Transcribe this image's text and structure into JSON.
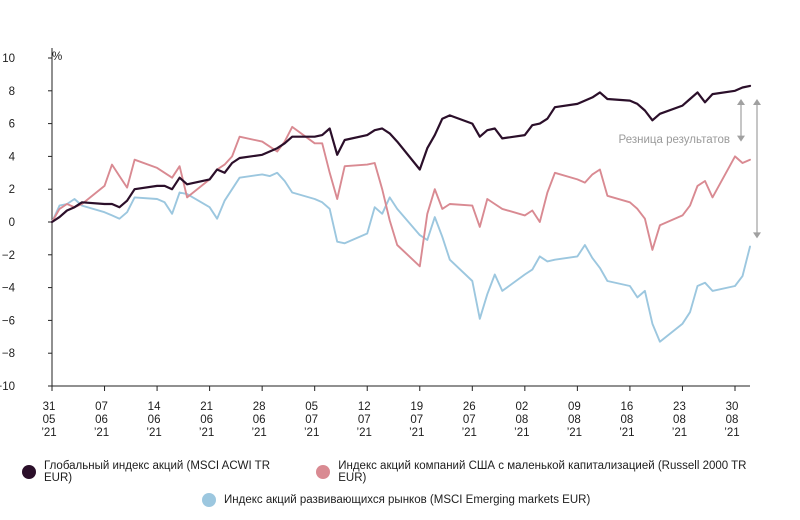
{
  "chart_data": {
    "type": "line",
    "y_unit": "%",
    "ylim": [
      -10,
      10
    ],
    "y_ticks": [
      "10",
      "8",
      "6",
      "4",
      "2",
      "0",
      "−2",
      "−4",
      "−6",
      "−8",
      "−10"
    ],
    "x_tick_labels": [
      [
        "31",
        "05",
        "’21"
      ],
      [
        "07",
        "06",
        "’21"
      ],
      [
        "14",
        "06",
        "’21"
      ],
      [
        "21",
        "06",
        "’21"
      ],
      [
        "28",
        "06",
        "’21"
      ],
      [
        "05",
        "07",
        "’21"
      ],
      [
        "12",
        "07",
        "’21"
      ],
      [
        "19",
        "07",
        "’21"
      ],
      [
        "26",
        "07",
        "’21"
      ],
      [
        "02",
        "08",
        "’21"
      ],
      [
        "09",
        "08",
        "’21"
      ],
      [
        "16",
        "08",
        "’21"
      ],
      [
        "23",
        "08",
        "’21"
      ],
      [
        "30",
        "08",
        "’21"
      ]
    ],
    "x_start": "2021-05-31",
    "x_end": "2021-09-01",
    "grid": false,
    "annotation": "Резница результатов",
    "series": [
      {
        "name": "Глобальный индекс акций (MSCI ACWI TR EUR)",
        "color": "#2b0f2a",
        "x": [
          "2021-05-31",
          "2021-06-01",
          "2021-06-02",
          "2021-06-03",
          "2021-06-04",
          "2021-06-07",
          "2021-06-08",
          "2021-06-09",
          "2021-06-10",
          "2021-06-11",
          "2021-06-14",
          "2021-06-15",
          "2021-06-16",
          "2021-06-17",
          "2021-06-18",
          "2021-06-21",
          "2021-06-22",
          "2021-06-23",
          "2021-06-24",
          "2021-06-25",
          "2021-06-28",
          "2021-06-29",
          "2021-06-30",
          "2021-07-01",
          "2021-07-02",
          "2021-07-05",
          "2021-07-06",
          "2021-07-07",
          "2021-07-08",
          "2021-07-09",
          "2021-07-12",
          "2021-07-13",
          "2021-07-14",
          "2021-07-15",
          "2021-07-16",
          "2021-07-19",
          "2021-07-20",
          "2021-07-21",
          "2021-07-22",
          "2021-07-23",
          "2021-07-26",
          "2021-07-27",
          "2021-07-28",
          "2021-07-29",
          "2021-07-30",
          "2021-08-02",
          "2021-08-03",
          "2021-08-04",
          "2021-08-05",
          "2021-08-06",
          "2021-08-09",
          "2021-08-10",
          "2021-08-11",
          "2021-08-12",
          "2021-08-13",
          "2021-08-16",
          "2021-08-17",
          "2021-08-18",
          "2021-08-19",
          "2021-08-20",
          "2021-08-23",
          "2021-08-24",
          "2021-08-25",
          "2021-08-26",
          "2021-08-27",
          "2021-08-30",
          "2021-08-31",
          "2021-09-01"
        ],
        "values": [
          0.0,
          0.3,
          0.7,
          0.9,
          1.2,
          1.1,
          1.1,
          0.9,
          1.3,
          2.0,
          2.2,
          2.2,
          2.0,
          2.7,
          2.3,
          2.6,
          3.2,
          3.0,
          3.6,
          3.9,
          4.1,
          4.3,
          4.5,
          4.8,
          5.2,
          5.2,
          5.3,
          5.7,
          4.1,
          5.0,
          5.3,
          5.6,
          5.7,
          5.4,
          4.9,
          3.2,
          4.5,
          5.3,
          6.3,
          6.5,
          6.0,
          5.2,
          5.6,
          5.7,
          5.1,
          5.3,
          5.9,
          6.0,
          6.3,
          7.0,
          7.2,
          7.4,
          7.6,
          7.9,
          7.5,
          7.4,
          7.2,
          6.8,
          6.2,
          6.6,
          7.1,
          7.5,
          7.9,
          7.3,
          7.8,
          8.0,
          8.2,
          8.3
        ]
      },
      {
        "name": "Индекс акций компаний США с маленькой капитализацией (Russell 2000 TR EUR)",
        "color": "#d98a92",
        "x": [
          "2021-05-31",
          "2021-06-01",
          "2021-06-02",
          "2021-06-03",
          "2021-06-04",
          "2021-06-07",
          "2021-06-08",
          "2021-06-09",
          "2021-06-10",
          "2021-06-11",
          "2021-06-14",
          "2021-06-15",
          "2021-06-16",
          "2021-06-17",
          "2021-06-18",
          "2021-06-21",
          "2021-06-22",
          "2021-06-23",
          "2021-06-24",
          "2021-06-25",
          "2021-06-28",
          "2021-06-29",
          "2021-06-30",
          "2021-07-01",
          "2021-07-02",
          "2021-07-05",
          "2021-07-06",
          "2021-07-07",
          "2021-07-08",
          "2021-07-09",
          "2021-07-12",
          "2021-07-13",
          "2021-07-14",
          "2021-07-15",
          "2021-07-16",
          "2021-07-19",
          "2021-07-20",
          "2021-07-21",
          "2021-07-22",
          "2021-07-23",
          "2021-07-26",
          "2021-07-27",
          "2021-07-28",
          "2021-07-29",
          "2021-07-30",
          "2021-08-02",
          "2021-08-03",
          "2021-08-04",
          "2021-08-05",
          "2021-08-06",
          "2021-08-09",
          "2021-08-10",
          "2021-08-11",
          "2021-08-12",
          "2021-08-13",
          "2021-08-16",
          "2021-08-17",
          "2021-08-18",
          "2021-08-19",
          "2021-08-20",
          "2021-08-23",
          "2021-08-24",
          "2021-08-25",
          "2021-08-26",
          "2021-08-27",
          "2021-08-30",
          "2021-08-31",
          "2021-09-01"
        ],
        "values": [
          0.0,
          0.8,
          1.1,
          0.9,
          1.1,
          2.2,
          3.5,
          2.8,
          2.1,
          3.8,
          3.3,
          3.0,
          2.7,
          3.4,
          1.5,
          2.6,
          3.2,
          3.5,
          4.0,
          5.2,
          4.9,
          4.6,
          4.3,
          4.9,
          5.8,
          4.8,
          4.8,
          3.0,
          1.4,
          3.4,
          3.5,
          3.6,
          2.0,
          0.1,
          -1.4,
          -2.7,
          0.5,
          2.0,
          0.8,
          1.1,
          1.0,
          -0.3,
          1.4,
          1.1,
          0.8,
          0.4,
          0.7,
          0.0,
          1.8,
          3.0,
          2.6,
          2.4,
          2.9,
          3.2,
          1.6,
          1.2,
          0.8,
          0.2,
          -1.7,
          -0.2,
          0.4,
          1.0,
          2.2,
          2.5,
          1.5,
          4.0,
          3.6,
          3.8
        ]
      },
      {
        "name": "Индекс акций развивающихся рынков (MSCI Emerging markets EUR)",
        "color": "#9cc7df",
        "x": [
          "2021-05-31",
          "2021-06-01",
          "2021-06-02",
          "2021-06-03",
          "2021-06-04",
          "2021-06-07",
          "2021-06-08",
          "2021-06-09",
          "2021-06-10",
          "2021-06-11",
          "2021-06-14",
          "2021-06-15",
          "2021-06-16",
          "2021-06-17",
          "2021-06-18",
          "2021-06-21",
          "2021-06-22",
          "2021-06-23",
          "2021-06-24",
          "2021-06-25",
          "2021-06-28",
          "2021-06-29",
          "2021-06-30",
          "2021-07-01",
          "2021-07-02",
          "2021-07-05",
          "2021-07-06",
          "2021-07-07",
          "2021-07-08",
          "2021-07-09",
          "2021-07-12",
          "2021-07-13",
          "2021-07-14",
          "2021-07-15",
          "2021-07-16",
          "2021-07-19",
          "2021-07-20",
          "2021-07-21",
          "2021-07-22",
          "2021-07-23",
          "2021-07-26",
          "2021-07-27",
          "2021-07-28",
          "2021-07-29",
          "2021-07-30",
          "2021-08-02",
          "2021-08-03",
          "2021-08-04",
          "2021-08-05",
          "2021-08-06",
          "2021-08-09",
          "2021-08-10",
          "2021-08-11",
          "2021-08-12",
          "2021-08-13",
          "2021-08-16",
          "2021-08-17",
          "2021-08-18",
          "2021-08-19",
          "2021-08-20",
          "2021-08-23",
          "2021-08-24",
          "2021-08-25",
          "2021-08-26",
          "2021-08-27",
          "2021-08-30",
          "2021-08-31",
          "2021-09-01"
        ],
        "values": [
          0.0,
          1.0,
          1.1,
          1.4,
          1.0,
          0.6,
          0.4,
          0.2,
          0.6,
          1.5,
          1.4,
          1.2,
          0.5,
          1.8,
          1.7,
          0.9,
          0.2,
          1.3,
          2.0,
          2.7,
          2.9,
          2.8,
          3.0,
          2.5,
          1.8,
          1.4,
          1.2,
          0.8,
          -1.2,
          -1.3,
          -0.7,
          0.9,
          0.5,
          1.5,
          0.8,
          -0.8,
          -1.1,
          0.3,
          -0.9,
          -2.3,
          -3.6,
          -5.9,
          -4.4,
          -3.2,
          -4.2,
          -3.2,
          -2.9,
          -2.1,
          -2.4,
          -2.3,
          -2.1,
          -1.4,
          -2.2,
          -2.8,
          -3.6,
          -3.9,
          -4.6,
          -4.2,
          -6.2,
          -7.3,
          -6.2,
          -5.5,
          -3.9,
          -3.7,
          -4.2,
          -3.9,
          -3.3,
          -1.5
        ]
      }
    ]
  }
}
